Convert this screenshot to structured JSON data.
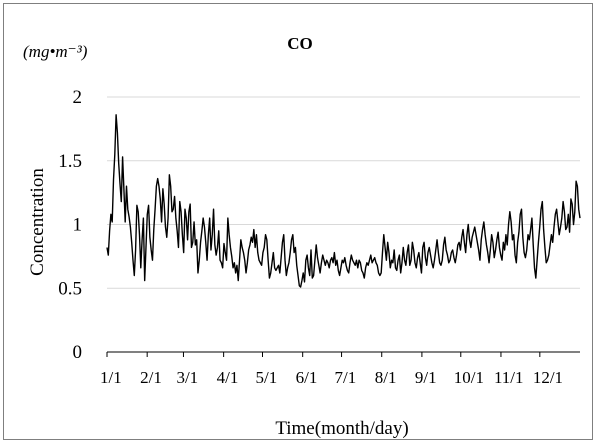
{
  "chart_data": {
    "type": "line",
    "title": "CO",
    "unit_label": "(mg•m⁻³)",
    "xlabel": "Time(month/day)",
    "ylabel": "Concentration",
    "ylim": [
      0,
      2
    ],
    "yticks": [
      0,
      0.5,
      1,
      1.5,
      2
    ],
    "ytick_labels": [
      "0",
      "0.5",
      "1",
      "1.5",
      "2"
    ],
    "xticks": [
      "1/1",
      "2/1",
      "3/1",
      "4/1",
      "5/1",
      "6/1",
      "7/1",
      "8/1",
      "9/1",
      "10/1",
      "11/1",
      "12/1"
    ],
    "x_day_index": [
      0,
      31,
      59,
      90,
      120,
      151,
      181,
      212,
      243,
      273,
      304,
      334
    ],
    "n_days": 365,
    "grid": true,
    "series": [
      {
        "color": "#000000",
        "values": [
          0.82,
          0.76,
          0.95,
          1.08,
          1.02,
          1.35,
          1.55,
          1.86,
          1.72,
          1.48,
          1.32,
          1.18,
          1.53,
          1.28,
          1.02,
          1.3,
          1.12,
          1.06,
          0.98,
          0.86,
          0.72,
          0.6,
          0.8,
          1.15,
          1.1,
          0.92,
          0.66,
          0.88,
          1.05,
          0.56,
          0.82,
          1.08,
          1.15,
          0.9,
          0.8,
          0.72,
          0.96,
          1.12,
          1.3,
          1.36,
          1.3,
          1.2,
          1.02,
          1.28,
          1.16,
          0.98,
          0.9,
          1.05,
          1.39,
          1.3,
          1.1,
          1.12,
          1.22,
          1.05,
          0.95,
          0.82,
          1.18,
          1.1,
          0.92,
          0.78,
          1.12,
          1.05,
          0.88,
          1.1,
          1.16,
          0.82,
          0.86,
          1.02,
          0.84,
          0.88,
          0.62,
          0.72,
          0.86,
          0.95,
          1.05,
          0.98,
          0.86,
          0.72,
          0.92,
          1.05,
          0.8,
          0.92,
          1.12,
          0.84,
          0.76,
          0.82,
          0.95,
          0.72,
          0.7,
          0.66,
          0.85,
          0.78,
          0.72,
          1.05,
          0.92,
          0.82,
          0.75,
          0.66,
          0.7,
          0.62,
          0.68,
          0.56,
          0.72,
          0.88,
          0.82,
          0.78,
          0.72,
          0.62,
          0.7,
          0.8,
          0.84,
          0.9,
          0.86,
          0.96,
          0.82,
          0.92,
          0.78,
          0.72,
          0.7,
          0.68,
          0.78,
          0.82,
          0.92,
          0.88,
          0.72,
          0.58,
          0.62,
          0.7,
          0.78,
          0.66,
          0.64,
          0.66,
          0.68,
          0.62,
          0.74,
          0.86,
          0.92,
          0.72,
          0.6,
          0.66,
          0.7,
          0.78,
          0.88,
          0.92,
          0.78,
          0.82,
          0.68,
          0.6,
          0.52,
          0.51,
          0.56,
          0.62,
          0.55,
          0.72,
          0.76,
          0.66,
          0.6,
          0.8,
          0.58,
          0.6,
          0.72,
          0.84,
          0.74,
          0.68,
          0.62,
          0.7,
          0.76,
          0.72,
          0.68,
          0.72,
          0.7,
          0.66,
          0.72,
          0.74,
          0.7,
          0.78,
          0.68,
          0.72,
          0.64,
          0.6,
          0.66,
          0.72,
          0.7,
          0.74,
          0.68,
          0.64,
          0.62,
          0.7,
          0.76,
          0.72,
          0.7,
          0.68,
          0.72,
          0.66,
          0.72,
          0.7,
          0.64,
          0.62,
          0.58,
          0.66,
          0.7,
          0.68,
          0.72,
          0.76,
          0.7,
          0.72,
          0.74,
          0.7,
          0.68,
          0.62,
          0.6,
          0.62,
          0.78,
          0.92,
          0.82,
          0.72,
          0.86,
          0.78,
          0.66,
          0.72,
          0.7,
          0.8,
          0.66,
          0.64,
          0.72,
          0.76,
          0.62,
          0.7,
          0.82,
          0.72,
          0.68,
          0.78,
          0.84,
          0.68,
          0.72,
          0.86,
          0.8,
          0.7,
          0.66,
          0.74,
          0.78,
          0.7,
          0.62,
          0.82,
          0.86,
          0.74,
          0.68,
          0.78,
          0.82,
          0.76,
          0.7,
          0.66,
          0.72,
          0.8,
          0.88,
          0.78,
          0.7,
          0.68,
          0.72,
          0.84,
          0.9,
          0.8,
          0.76,
          0.7,
          0.72,
          0.78,
          0.8,
          0.74,
          0.7,
          0.76,
          0.84,
          0.86,
          0.8,
          0.9,
          0.96,
          0.86,
          0.78,
          0.92,
          1.0,
          0.88,
          0.82,
          0.9,
          0.94,
          0.98,
          0.92,
          0.86,
          0.8,
          0.72,
          0.88,
          0.96,
          1.02,
          0.92,
          0.84,
          0.78,
          0.7,
          0.8,
          0.92,
          0.86,
          0.74,
          0.8,
          0.88,
          0.94,
          0.82,
          0.76,
          0.72,
          0.86,
          0.8,
          0.92,
          0.84,
          1.0,
          1.1,
          1.02,
          0.88,
          0.92,
          0.76,
          0.7,
          0.86,
          0.94,
          1.08,
          1.12,
          0.9,
          0.78,
          0.74,
          0.8,
          0.92,
          0.88,
          0.96,
          1.05,
          0.84,
          0.66,
          0.58,
          0.72,
          0.86,
          0.98,
          1.12,
          1.18,
          0.96,
          0.82,
          0.7,
          0.72,
          0.76,
          0.84,
          0.92,
          0.86,
          0.98,
          1.08,
          1.12,
          1.02,
          0.92,
          0.98,
          1.05,
          1.18,
          1.1,
          0.96,
          0.98,
          1.08,
          0.94,
          1.2,
          1.16,
          1.0,
          1.1,
          1.34,
          1.3,
          1.12,
          1.05
        ]
      }
    ]
  }
}
